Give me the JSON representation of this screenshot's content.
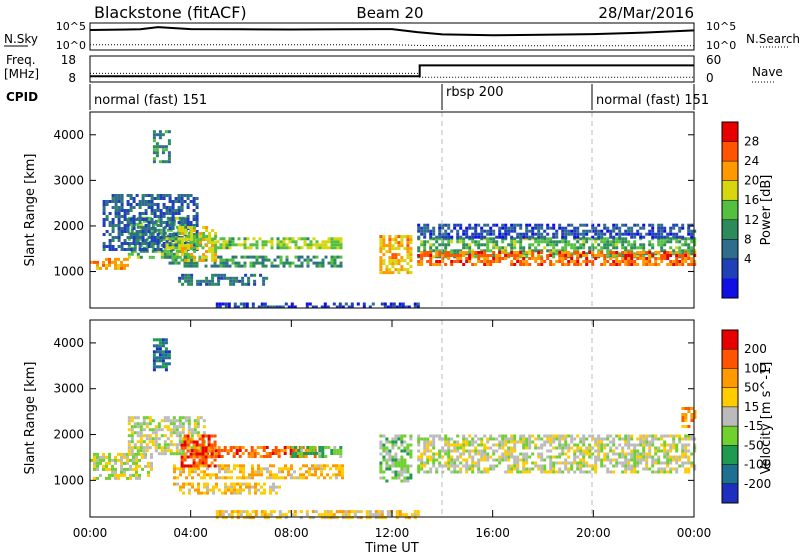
{
  "header": {
    "radar": "Blackstone (fitACF)",
    "beam": "Beam 20",
    "date": "28/Mar/2016"
  },
  "chart_data": [
    {
      "type": "line",
      "name": "sky-noise-panel",
      "left_label": "N.Sky",
      "right_label": "N.Search",
      "left_ticks": [
        "10^5",
        "10^0"
      ],
      "right_ticks": [
        "10^5",
        "10^0"
      ],
      "x": [
        0,
        2,
        2.7,
        4,
        6,
        8,
        10,
        12,
        13,
        14,
        16,
        18,
        20,
        22,
        24
      ],
      "sky": [
        0.82,
        0.85,
        0.95,
        0.86,
        0.85,
        0.84,
        0.85,
        0.86,
        0.72,
        0.62,
        0.58,
        0.6,
        0.63,
        0.7,
        0.8
      ],
      "search": [
        0.15,
        0.15,
        0.15,
        0.15,
        0.15,
        0.15,
        0.15,
        0.15,
        0.12,
        0.1,
        0.1,
        0.1,
        0.1,
        0.1,
        0.1
      ]
    },
    {
      "type": "line",
      "name": "frequency-panel",
      "left_label": "Freq.",
      "left_unit": "[MHz]",
      "right_label": "Nave",
      "left_ticks": [
        "18",
        "8"
      ],
      "right_ticks": [
        "60",
        "0"
      ],
      "x": [
        0,
        13.1,
        13.1,
        24
      ],
      "freq_mhz": [
        10.2,
        10.2,
        14.4,
        14.4
      ],
      "nave_x": [
        0,
        13.1,
        13.1,
        24
      ],
      "nave": [
        20,
        20,
        11,
        11
      ]
    },
    {
      "type": "table",
      "name": "cpid-panel",
      "label": "CPID",
      "segments": [
        {
          "start_ut": 0,
          "label": "normal (fast) 151"
        },
        {
          "start_ut": 14,
          "label": "rbsp 200"
        },
        {
          "start_ut": 20,
          "label": "normal (fast) 151"
        }
      ]
    },
    {
      "type": "heatmap",
      "name": "power-panel",
      "ylabel": "Slant Range [km]",
      "yticks": [
        1000,
        2000,
        3000,
        4000
      ],
      "ylim": [
        200,
        4500
      ],
      "colorbar_label": "Power [dB]",
      "colorbar_ticks": [
        "28",
        "24",
        "20",
        "16",
        "12",
        "8",
        "4"
      ],
      "colors": [
        "#1010e6",
        "#2040b8",
        "#2e6e8c",
        "#2d8a5a",
        "#55c040",
        "#d7d710",
        "#ff9900",
        "#ff5500",
        "#e80000"
      ],
      "bands": [
        {
          "x0": 0,
          "x1": 1.5,
          "r0": 1050,
          "r1": 1300,
          "level": 0.75
        },
        {
          "x0": 1.5,
          "x1": 4,
          "r0": 1300,
          "r1": 2200,
          "level": 0.45
        },
        {
          "x0": 0.5,
          "x1": 4.2,
          "r0": 1500,
          "r1": 2700,
          "level": 0.2
        },
        {
          "x0": 2.5,
          "x1": 3.2,
          "r0": 3400,
          "r1": 4100,
          "level": 0.35
        },
        {
          "x0": 3,
          "x1": 10,
          "r0": 1550,
          "r1": 1750,
          "level": 0.55
        },
        {
          "x0": 3,
          "x1": 10,
          "r0": 1100,
          "r1": 1350,
          "level": 0.35
        },
        {
          "x0": 3.5,
          "x1": 7,
          "r0": 750,
          "r1": 950,
          "level": 0.25
        },
        {
          "x0": 3.5,
          "x1": 5,
          "r0": 1250,
          "r1": 2000,
          "level": 0.6
        },
        {
          "x0": 11.5,
          "x1": 12.8,
          "r0": 1000,
          "r1": 1800,
          "level": 0.7
        },
        {
          "x0": 13,
          "x1": 24,
          "r0": 1300,
          "r1": 1750,
          "level": 0.45
        },
        {
          "x0": 13,
          "x1": 24,
          "r0": 1750,
          "r1": 2050,
          "level": 0.15
        },
        {
          "x0": 13,
          "x1": 24,
          "r0": 1150,
          "r1": 1450,
          "level": 0.85
        },
        {
          "x0": 5,
          "x1": 13,
          "r0": 200,
          "r1": 320,
          "level": 0.1
        }
      ]
    },
    {
      "type": "heatmap",
      "name": "velocity-panel",
      "xlabel": "Time UT",
      "ylabel": "Slant Range [km]",
      "yticks": [
        1000,
        2000,
        3000,
        4000
      ],
      "ylim": [
        200,
        4500
      ],
      "xticks": [
        "00:00",
        "04:00",
        "08:00",
        "12:00",
        "16:00",
        "20:00",
        "00:00"
      ],
      "xlim_hours": [
        0,
        24
      ],
      "colorbar_label": "Velocity [m s^-1]",
      "colorbar_ticks": [
        "200",
        "100",
        "50",
        "15",
        "-15",
        "-50",
        "-100",
        "-200"
      ],
      "colors": [
        "#1e2fc0",
        "#1e7090",
        "#209a50",
        "#70d030",
        "#bbbbbb",
        "#ffcc00",
        "#ff9900",
        "#ff5500",
        "#e80000"
      ],
      "bands": [
        {
          "x0": 0,
          "x1": 2.5,
          "r0": 1050,
          "r1": 1600,
          "level": 0.5
        },
        {
          "x0": 1.5,
          "x1": 4.5,
          "r0": 1600,
          "r1": 2400,
          "level": 0.5
        },
        {
          "x0": 2.5,
          "x1": 3.2,
          "r0": 3400,
          "r1": 4100,
          "level": 0.15
        },
        {
          "x0": 4,
          "x1": 9,
          "r0": 1550,
          "r1": 1750,
          "level": 0.85
        },
        {
          "x0": 8,
          "x1": 10,
          "r0": 1550,
          "r1": 1750,
          "level": 0.35
        },
        {
          "x0": 3.3,
          "x1": 10,
          "r0": 1050,
          "r1": 1350,
          "level": 0.65
        },
        {
          "x0": 3.3,
          "x1": 7.5,
          "r0": 750,
          "r1": 950,
          "level": 0.65
        },
        {
          "x0": 3.6,
          "x1": 5,
          "r0": 1300,
          "r1": 2000,
          "level": 0.9
        },
        {
          "x0": 11.5,
          "x1": 12.8,
          "r0": 1000,
          "r1": 2000,
          "level": 0.4
        },
        {
          "x0": 13,
          "x1": 24,
          "r0": 1200,
          "r1": 2000,
          "level": 0.5
        },
        {
          "x0": 5,
          "x1": 13,
          "r0": 200,
          "r1": 350,
          "level": 0.62
        },
        {
          "x0": 23.5,
          "x1": 24,
          "r0": 2200,
          "r1": 2600,
          "level": 0.75
        }
      ]
    }
  ]
}
